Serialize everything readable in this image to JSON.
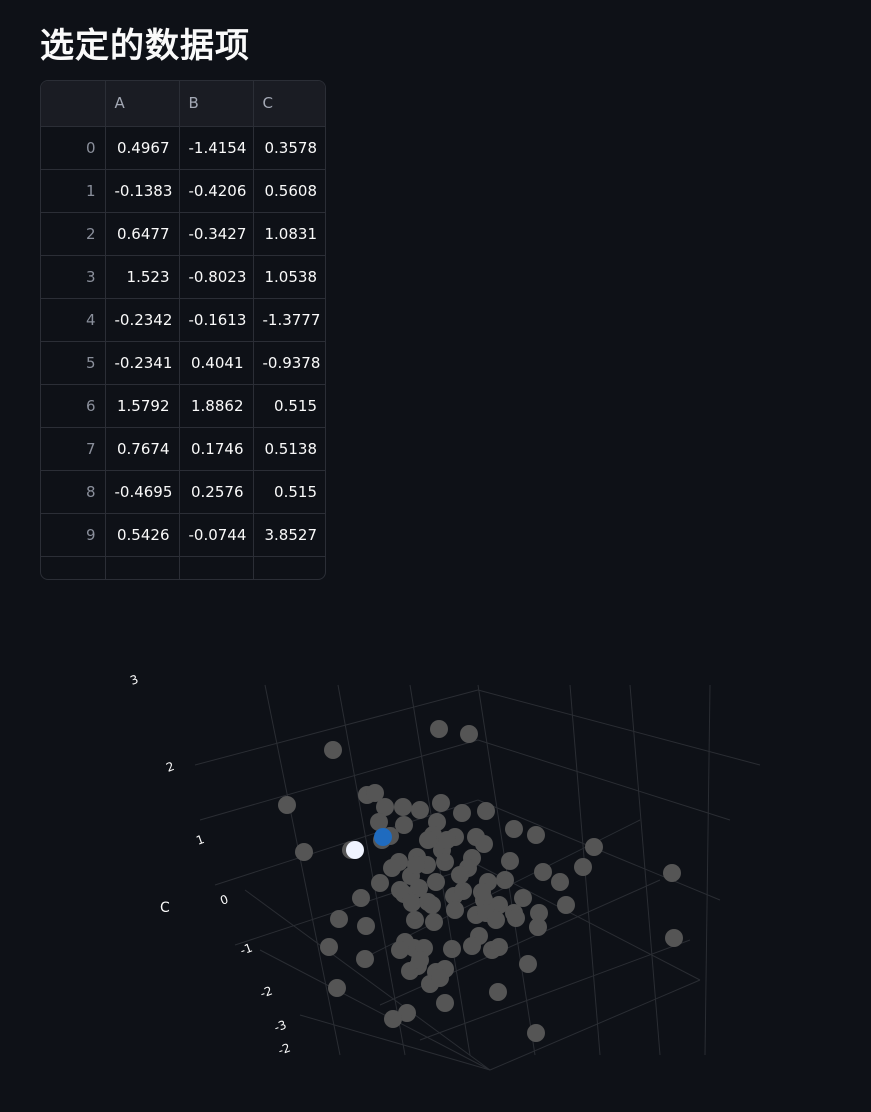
{
  "page": {
    "title": "选定的数据项"
  },
  "table": {
    "columns": [
      "",
      "A",
      "B",
      "C"
    ],
    "rows": [
      [
        "0",
        "0.4967",
        "-1.4154",
        "0.3578"
      ],
      [
        "1",
        "-0.1383",
        "-0.4206",
        "0.5608"
      ],
      [
        "2",
        "0.6477",
        "-0.3427",
        "1.0831"
      ],
      [
        "3",
        "1.523",
        "-0.8023",
        "1.0538"
      ],
      [
        "4",
        "-0.2342",
        "-0.1613",
        "-1.3777"
      ],
      [
        "5",
        "-0.2341",
        "0.4041",
        "-0.9378"
      ],
      [
        "6",
        "1.5792",
        "1.8862",
        "0.515"
      ],
      [
        "7",
        "0.7674",
        "0.1746",
        "0.5138"
      ],
      [
        "8",
        "-0.4695",
        "0.2576",
        "0.515"
      ],
      [
        "9",
        "0.5426",
        "-0.0744",
        "3.8527"
      ]
    ]
  },
  "chart_data": {
    "type": "scatter",
    "projection": "3d",
    "axis_title_z": "C",
    "z_ticks": [
      "3",
      "2",
      "1",
      "0",
      "-1",
      "-2",
      "-3"
    ],
    "other_ticks": [
      "-2"
    ],
    "grid": true,
    "colors": {
      "point": "#555555",
      "selected": "#1f6bbf",
      "hover": "#f0f4ff",
      "grid": "#2a2d33"
    },
    "note_selected_point": "one point highlighted blue, one white",
    "point_count": 100
  }
}
